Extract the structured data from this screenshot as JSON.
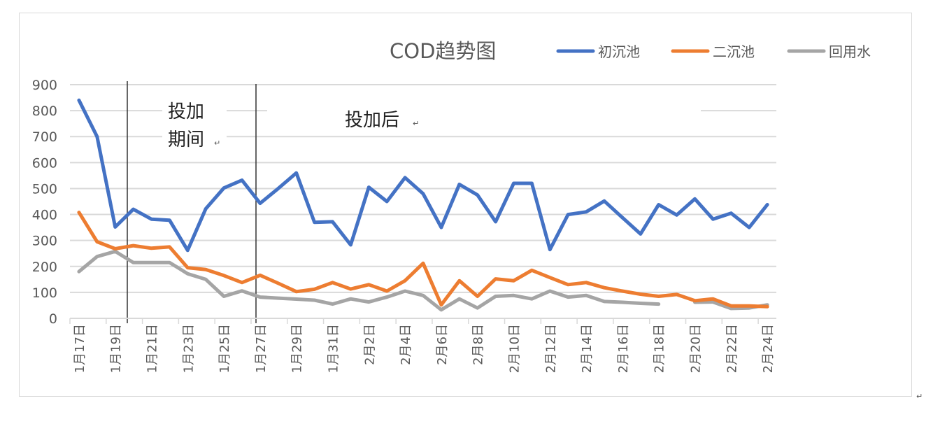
{
  "chart_data": {
    "type": "line",
    "title": "COD趋势图",
    "xlabel": "",
    "ylabel": "",
    "ylim": [
      0,
      900
    ],
    "yticks": [
      0,
      100,
      200,
      300,
      400,
      500,
      600,
      700,
      800,
      900
    ],
    "grid": true,
    "legend_position": "top-right",
    "categories": [
      "1月17日",
      "1月18日",
      "1月19日",
      "1月20日",
      "1月21日",
      "1月22日",
      "1月23日",
      "1月24日",
      "1月25日",
      "1月26日",
      "1月27日",
      "1月28日",
      "1月29日",
      "1月30日",
      "1月31日",
      "2月1日",
      "2月2日",
      "2月3日",
      "2月4日",
      "2月5日",
      "2月6日",
      "2月7日",
      "2月8日",
      "2月9日",
      "2月10日",
      "2月11日",
      "2月12日",
      "2月13日",
      "2月14日",
      "2月15日",
      "2月16日",
      "2月17日",
      "2月18日",
      "2月19日",
      "2月20日",
      "2月21日",
      "2月22日",
      "2月23日",
      "2月24日"
    ],
    "series": [
      {
        "name": "初沉池",
        "color": "#4472C4",
        "values": [
          840,
          700,
          352,
          420,
          382,
          378,
          262,
          422,
          502,
          532,
          443,
          500,
          560,
          370,
          372,
          283,
          505,
          450,
          542,
          480,
          350,
          516,
          475,
          372,
          520,
          520,
          265,
          400,
          410,
          452,
          388,
          325,
          438,
          398,
          460,
          382,
          405,
          350,
          438
        ]
      },
      {
        "name": "二沉池",
        "color": "#ED7D31",
        "values": [
          408,
          295,
          268,
          280,
          270,
          275,
          195,
          188,
          165,
          138,
          166,
          135,
          103,
          112,
          138,
          113,
          130,
          105,
          145,
          212,
          52,
          145,
          85,
          152,
          145,
          185,
          157,
          130,
          138,
          118,
          105,
          93,
          85,
          92,
          68,
          75,
          48,
          48,
          45
        ]
      },
      {
        "name": "回用水",
        "color": "#A5A5A5",
        "values": [
          180,
          238,
          258,
          215,
          215,
          215,
          172,
          150,
          85,
          106,
          82,
          78,
          74,
          70,
          55,
          75,
          63,
          82,
          105,
          88,
          33,
          75,
          40,
          85,
          88,
          75,
          105,
          82,
          88,
          65,
          62,
          58,
          55,
          null,
          62,
          63,
          38,
          40,
          52
        ]
      }
    ],
    "annotations": [
      {
        "line1": "投加",
        "line2": "期间",
        "after_category": "1月19日"
      },
      {
        "line1": "投加后",
        "at_category": "1月27日"
      }
    ],
    "return_mark": "↵"
  }
}
